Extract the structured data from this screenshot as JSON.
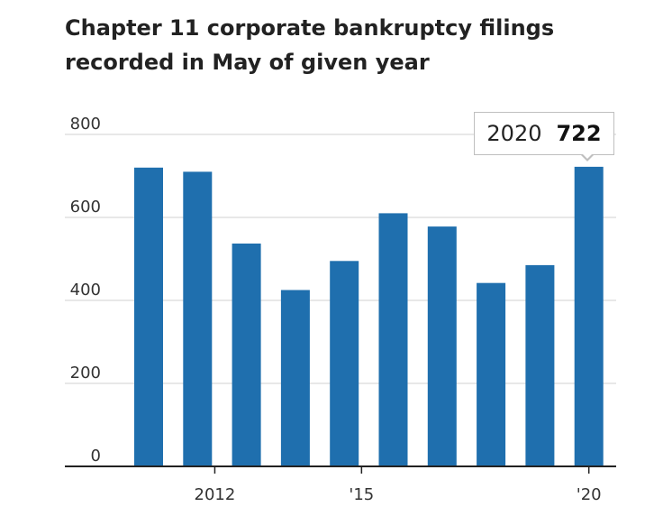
{
  "title": {
    "line1": "Chapter 11 corporate bankruptcy filings",
    "line2": "recorded in May of given year"
  },
  "callout": {
    "year": "2020",
    "value": "722"
  },
  "colors": {
    "bar": "#1f6fae",
    "grid": "#d9d9d9",
    "axis": "#222222"
  },
  "chart_data": {
    "type": "bar",
    "title": "Chapter 11 corporate bankruptcy filings recorded in May of given year",
    "categories": [
      2011,
      2012,
      2013,
      2014,
      2015,
      2016,
      2017,
      2018,
      2019,
      2020
    ],
    "values": [
      720,
      710,
      537,
      425,
      495,
      610,
      578,
      442,
      485,
      722
    ],
    "ylim": [
      0,
      800
    ],
    "y_ticks": [
      0,
      200,
      400,
      600,
      800
    ],
    "y_tick_labels": [
      "0",
      "200",
      "400",
      "600",
      "800"
    ],
    "x_tick_labels": [
      {
        "category": 2012,
        "label": "2012"
      },
      {
        "category": 2015,
        "label": "'15"
      },
      {
        "category": 2020,
        "label": "'20"
      }
    ],
    "grid": true,
    "xlabel": "",
    "ylabel": "",
    "highlight": {
      "category": 2020,
      "value": 722
    }
  }
}
